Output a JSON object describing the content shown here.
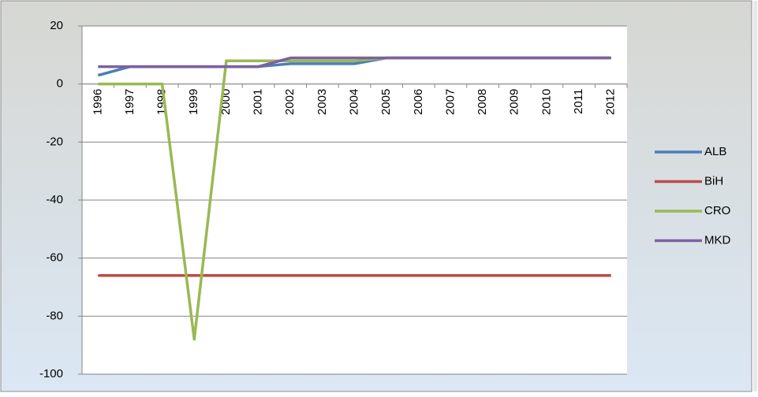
{
  "chart_data": {
    "type": "line",
    "categories": [
      "1996",
      "1997",
      "1998",
      "1999",
      "2000",
      "2001",
      "2002",
      "2003",
      "2004",
      "2005",
      "2006",
      "2007",
      "2008",
      "2009",
      "2010",
      "2011",
      "2012"
    ],
    "series": [
      {
        "name": "ALB",
        "color": "#4a7ebb",
        "values": [
          3,
          6,
          6,
          6,
          6,
          6,
          7,
          7,
          7,
          9,
          9,
          9,
          9,
          9,
          9,
          9,
          9
        ]
      },
      {
        "name": "BiH",
        "color": "#be4b48",
        "values": [
          -66,
          -66,
          -66,
          -66,
          -66,
          -66,
          -66,
          -66,
          -66,
          -66,
          -66,
          -66,
          -66,
          -66,
          -66,
          -66,
          -66
        ]
      },
      {
        "name": "CRO",
        "color": "#98b954",
        "values": [
          0,
          0,
          0,
          -88,
          8,
          8,
          8,
          8,
          8,
          9,
          9,
          9,
          9,
          9,
          9,
          9,
          9
        ]
      },
      {
        "name": "MKD",
        "color": "#7d60a0",
        "values": [
          6,
          6,
          6,
          6,
          6,
          6,
          9,
          9,
          9,
          9,
          9,
          9,
          9,
          9,
          9,
          9,
          9
        ]
      }
    ],
    "ylim": [
      -100,
      20
    ],
    "yticks": [
      -100,
      -80,
      -60,
      -40,
      -20,
      0,
      20
    ],
    "grid": true,
    "legend": "right"
  }
}
